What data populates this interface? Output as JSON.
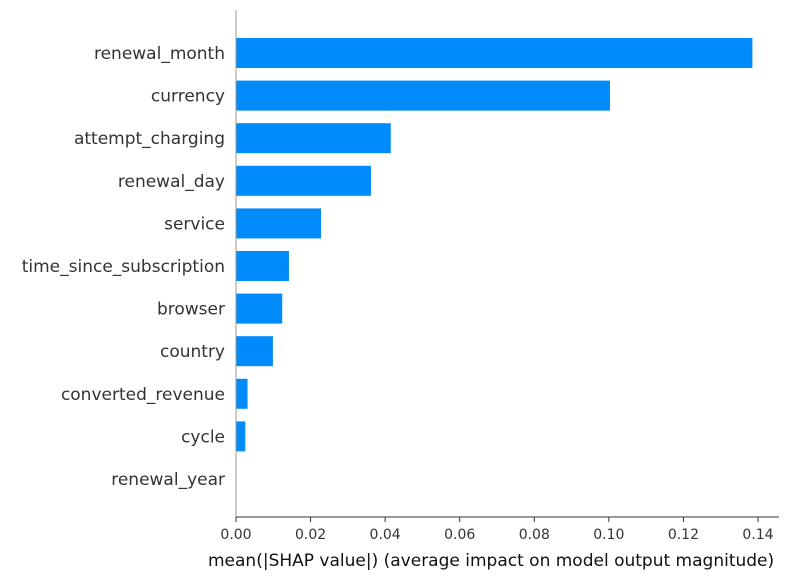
{
  "chart_data": {
    "type": "bar",
    "orientation": "horizontal",
    "categories": [
      "renewal_month",
      "currency",
      "attempt_charging",
      "renewal_day",
      "service",
      "time_since_subscription",
      "browser",
      "country",
      "converted_revenue",
      "cycle",
      "renewal_year"
    ],
    "values": [
      0.1385,
      0.1003,
      0.0415,
      0.0362,
      0.0228,
      0.0142,
      0.0124,
      0.0099,
      0.0031,
      0.0025,
      0.0
    ],
    "xlabel": "mean(|SHAP value|) (average impact on model output magnitude)",
    "ylabel": "",
    "xlim": [
      0,
      0.145
    ],
    "xticks": [
      0.0,
      0.02,
      0.04,
      0.06,
      0.08,
      0.1,
      0.12,
      0.14
    ],
    "xtick_labels": [
      "0.00",
      "0.02",
      "0.04",
      "0.06",
      "0.08",
      "0.10",
      "0.12",
      "0.14"
    ],
    "bar_color": "#008bfb",
    "grid": false,
    "legend": "none"
  }
}
